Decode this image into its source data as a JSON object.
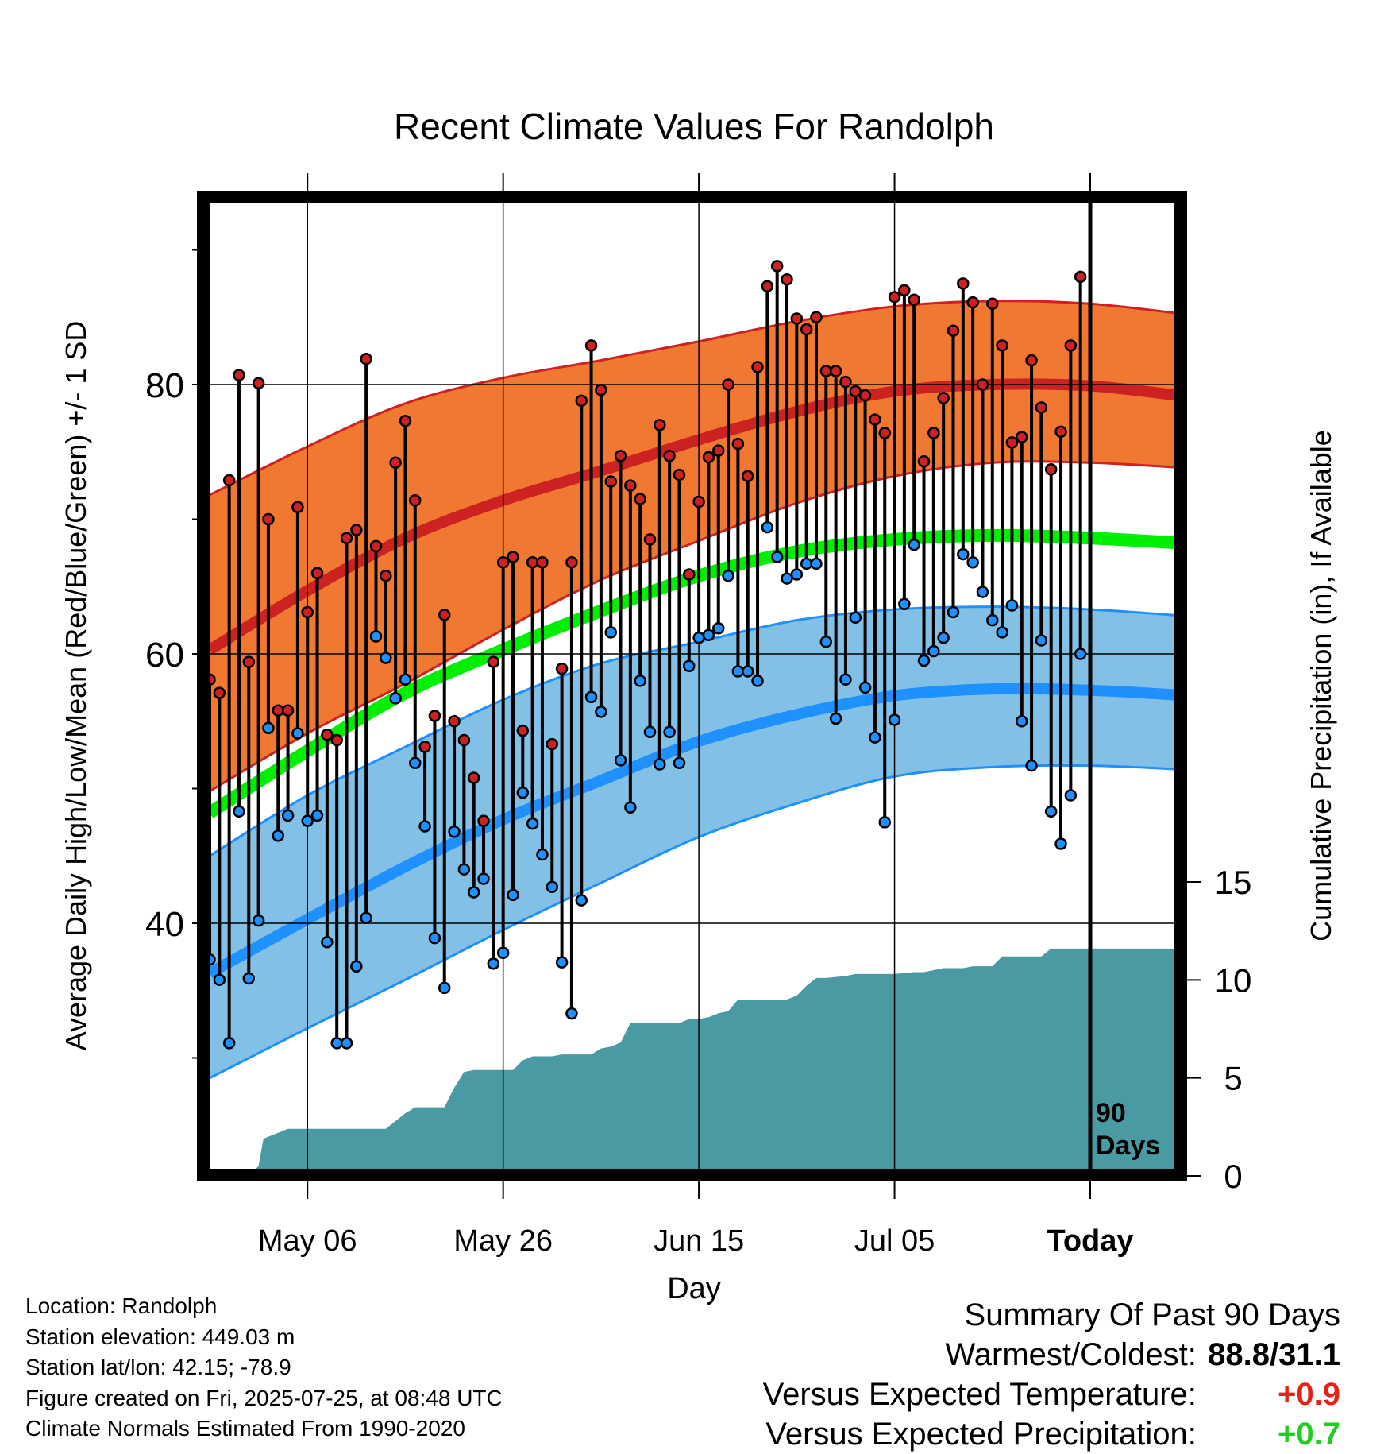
{
  "colors": {
    "high_band": "#f07830",
    "high_band_edge": "#cc2222",
    "high_mean": "#cc2222",
    "low_band": "#82c0e6",
    "low_band_edge": "#1e90ff",
    "low_mean": "#1e90ff",
    "mean_line": "#00ee00",
    "precip_fill": "#4a9aa3",
    "high_point": "#cc2222",
    "low_point": "#1e90ff",
    "positive_temp": "#e8201a",
    "positive_precip": "#22cc22"
  },
  "chart_data": {
    "type": "line",
    "title": "Recent Climate Values For Randolph",
    "xlabel": "Day",
    "ylabel": "Average Daily High/Low/Mean (Red/Blue/Green) +/- 1 SD",
    "ylabel_right": "Cumulative Precipitation (in), If Available",
    "x_ticks": [
      {
        "day": 10,
        "label": "May 06"
      },
      {
        "day": 30,
        "label": "May 26"
      },
      {
        "day": 50,
        "label": "Jun 15"
      },
      {
        "day": 70,
        "label": "Jul 05"
      },
      {
        "day": 90,
        "label": "Today"
      }
    ],
    "x_range_days": [
      0,
      100
    ],
    "today_day": 90,
    "today_annotation": [
      "90",
      "Days"
    ],
    "ylim": [
      21.5,
      95
    ],
    "y_ticks": [
      40,
      60,
      80
    ],
    "y_minor_ticks": [
      30,
      50,
      70,
      90
    ],
    "y2_ticks": [
      0,
      5,
      10,
      15
    ],
    "y2lim": [
      0,
      15
    ],
    "grid": true,
    "normals": {
      "days": [
        0,
        10,
        20,
        30,
        40,
        50,
        60,
        70,
        80,
        90,
        100
      ],
      "high_mean": [
        60.3,
        64.7,
        68.6,
        71.4,
        73.6,
        75.9,
        78.0,
        79.5,
        80.0,
        79.9,
        79.1
      ],
      "high_plus_sd": [
        71.8,
        75.4,
        78.6,
        80.5,
        81.8,
        83.2,
        84.7,
        85.8,
        86.2,
        86.0,
        85.2
      ],
      "high_minus_sd": [
        49.8,
        54.1,
        57.8,
        61.8,
        65.5,
        68.4,
        71.2,
        73.2,
        74.2,
        74.2,
        73.8
      ],
      "mean": [
        48.2,
        52.8,
        57.1,
        60.3,
        63.2,
        65.8,
        67.6,
        68.5,
        68.8,
        68.6,
        68.2
      ],
      "low_mean": [
        36.3,
        40.3,
        44.2,
        47.7,
        50.6,
        53.5,
        55.5,
        56.9,
        57.4,
        57.3,
        56.9
      ],
      "low_plus_sd": [
        45.0,
        49.5,
        53.1,
        56.6,
        59.3,
        60.9,
        62.5,
        63.3,
        63.5,
        63.3,
        62.8
      ],
      "low_minus_sd": [
        28.5,
        32.2,
        35.8,
        39.5,
        43.0,
        46.4,
        48.9,
        50.9,
        51.6,
        51.7,
        51.4
      ]
    },
    "series": [
      {
        "name": "High",
        "values": [
          58.1,
          57.1,
          72.9,
          80.7,
          59.4,
          80.1,
          70.0,
          55.8,
          55.8,
          70.9,
          63.1,
          66.0,
          54.0,
          53.6,
          68.6,
          69.2,
          81.9,
          68.0,
          65.8,
          74.2,
          77.3,
          71.4,
          53.1,
          55.4,
          62.9,
          55.0,
          53.6,
          50.8,
          47.6,
          59.4,
          66.8,
          67.2,
          54.3,
          66.8,
          66.8,
          53.3,
          58.9,
          66.8,
          78.8,
          82.9,
          79.6,
          72.8,
          74.7,
          72.5,
          71.5,
          68.5,
          77.0,
          74.7,
          73.3,
          65.9,
          71.3,
          74.6,
          75.1,
          80.0,
          75.6,
          73.2,
          81.3,
          87.3,
          88.8,
          87.8,
          84.9,
          84.1,
          85.0,
          81.0,
          81.0,
          80.2,
          79.5,
          79.2,
          77.4,
          76.4,
          86.5,
          87.0,
          86.3,
          74.3,
          76.4,
          79.0,
          84.0,
          87.5,
          86.1,
          80.0,
          86.0,
          82.9,
          75.7,
          76.1,
          81.8,
          78.3,
          73.7,
          76.5,
          82.9,
          88.0
        ]
      },
      {
        "name": "Low",
        "values": [
          37.3,
          35.8,
          31.1,
          48.3,
          35.9,
          40.2,
          54.5,
          46.5,
          48.0,
          54.1,
          47.6,
          48.0,
          38.6,
          31.1,
          31.1,
          36.8,
          40.4,
          61.3,
          59.7,
          56.7,
          58.1,
          51.9,
          47.2,
          38.9,
          35.2,
          46.8,
          44.0,
          42.3,
          43.3,
          37.0,
          37.8,
          42.1,
          49.7,
          47.4,
          45.1,
          42.7,
          37.1,
          33.3,
          41.7,
          56.8,
          55.7,
          61.6,
          52.1,
          48.6,
          58.0,
          54.2,
          51.8,
          54.2,
          51.9,
          59.1,
          61.2,
          61.4,
          61.9,
          65.8,
          58.7,
          58.7,
          58.0,
          69.4,
          67.2,
          65.6,
          65.9,
          66.7,
          66.7,
          60.9,
          55.2,
          58.1,
          62.7,
          57.5,
          53.8,
          47.5,
          55.1,
          63.7,
          68.1,
          59.5,
          60.2,
          61.2,
          63.1,
          67.4,
          66.8,
          64.6,
          62.5,
          61.6,
          63.6,
          55.0,
          51.7,
          61.0,
          48.3,
          45.9,
          49.5,
          60.0
        ]
      }
    ],
    "precip": {
      "days": [
        0,
        4,
        5,
        5.5,
        7,
        8,
        10,
        12,
        18,
        19,
        20,
        21,
        24,
        25,
        26,
        27,
        30,
        31,
        32,
        33,
        35,
        36,
        39,
        40,
        41,
        42,
        43,
        44,
        45,
        48,
        49,
        50,
        51,
        52,
        53,
        54,
        55,
        58,
        59,
        60,
        61,
        62,
        63,
        65,
        66,
        70,
        72,
        73,
        75,
        77,
        78,
        80,
        81,
        85,
        86,
        87,
        88,
        100
      ],
      "values": [
        0,
        0,
        0.5,
        1.9,
        2.2,
        2.4,
        2.4,
        2.4,
        2.4,
        2.8,
        3.2,
        3.5,
        3.5,
        4.5,
        5.3,
        5.4,
        5.4,
        5.4,
        5.9,
        6.1,
        6.1,
        6.2,
        6.2,
        6.5,
        6.6,
        6.8,
        7.8,
        7.8,
        7.8,
        7.8,
        8.0,
        8.0,
        8.1,
        8.3,
        8.4,
        9.0,
        9.0,
        9.0,
        9.0,
        9.2,
        9.7,
        10.1,
        10.1,
        10.2,
        10.3,
        10.3,
        10.4,
        10.4,
        10.6,
        10.6,
        10.7,
        10.7,
        11.2,
        11.2,
        11.6,
        11.6,
        11.6,
        11.6
      ]
    }
  },
  "info": {
    "location": "Location: Randolph",
    "elevation": "Station elevation: 449.03 m",
    "latlon": "Station lat/lon: 42.15; -78.9",
    "created": "Figure created on Fri, 2025-07-25, at 08:48 UTC",
    "normals": "Climate Normals Estimated From 1990-2020"
  },
  "summary": {
    "title": "Summary Of Past 90 Days",
    "warmest_coldest_label": "Warmest/Coldest:",
    "warmest_coldest_value": "88.8/31.1",
    "temp_label": "Versus Expected Temperature:",
    "temp_value": "+0.9",
    "precip_label": "Versus Expected Precipitation:",
    "precip_value": "+0.7"
  }
}
